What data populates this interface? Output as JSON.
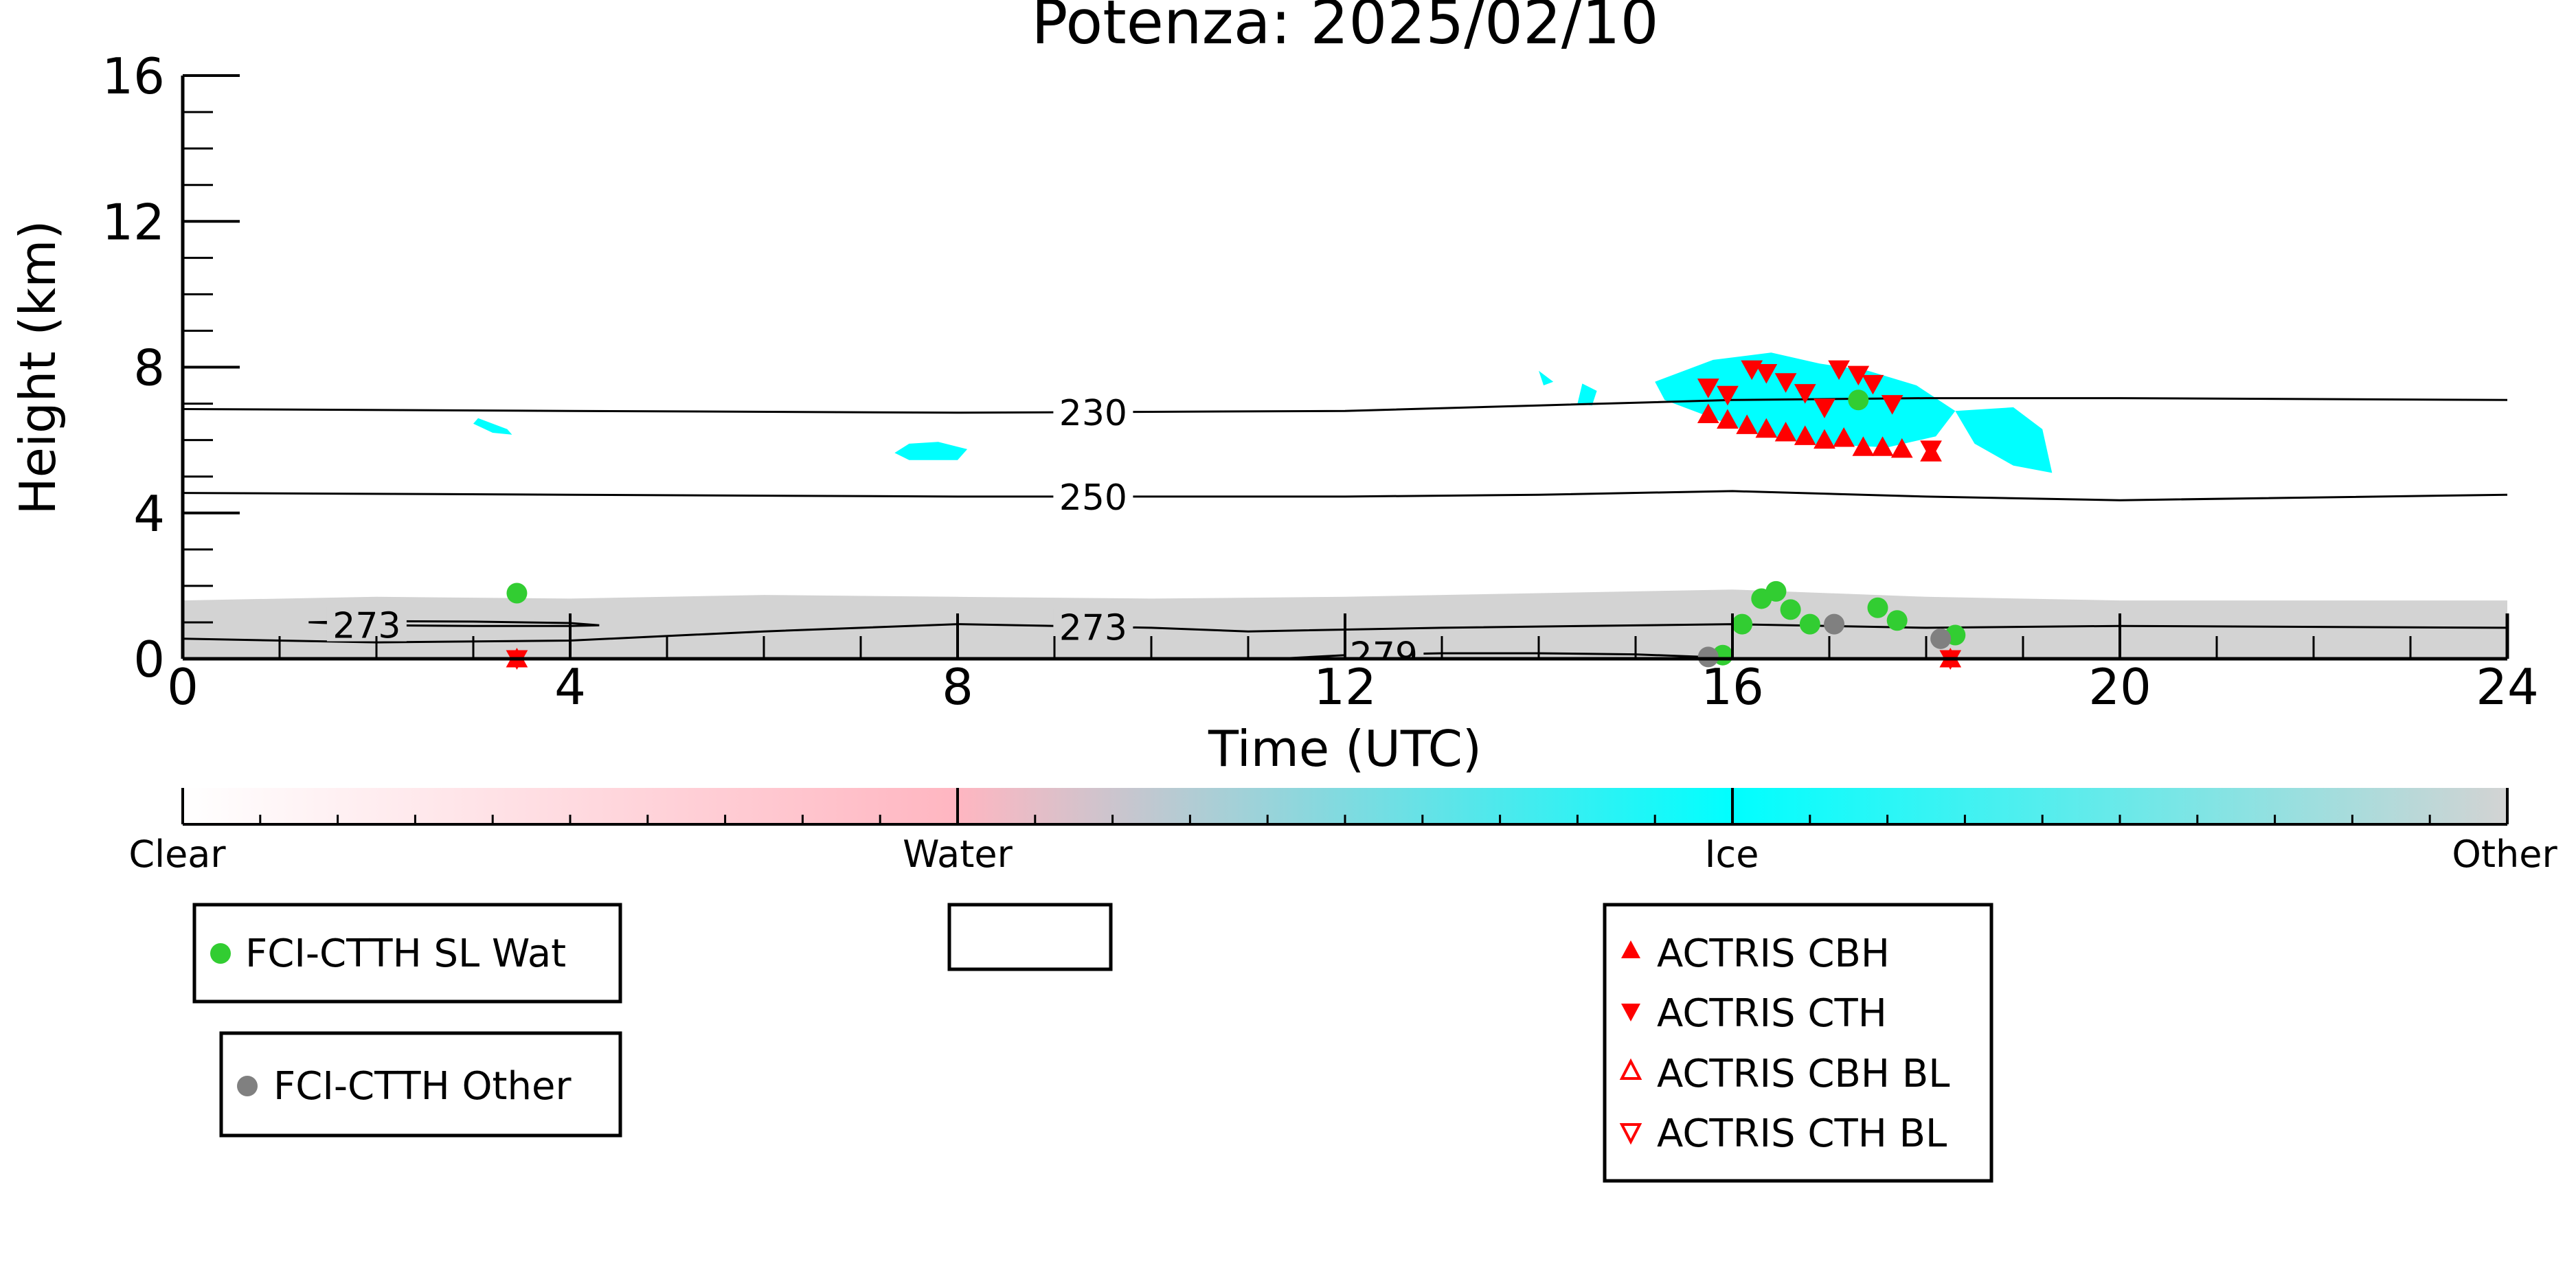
{
  "chart_data": {
    "type": "scatter",
    "title": "Potenza: 2025/02/10",
    "xlabel": "Time (UTC)",
    "ylabel": "Height (km)",
    "xlim": [
      0,
      24
    ],
    "ylim": [
      0,
      16
    ],
    "xticks": [
      0,
      4,
      8,
      12,
      16,
      20,
      24
    ],
    "yticks": [
      0,
      4,
      8,
      12,
      16
    ],
    "grid": false,
    "colorbar": {
      "labels": [
        "Clear",
        "Water",
        "Ice",
        "Other"
      ],
      "colors": {
        "clear": "#ffffff",
        "water": "#ffb6c1",
        "ice": "#00ffff",
        "other": "#d3d3d3"
      }
    },
    "contours": [
      {
        "label": "230",
        "label_x": 9.4,
        "points": [
          [
            0,
            6.85
          ],
          [
            4,
            6.8
          ],
          [
            8,
            6.75
          ],
          [
            12,
            6.8
          ],
          [
            14,
            6.95
          ],
          [
            16,
            7.1
          ],
          [
            18,
            7.15
          ],
          [
            20,
            7.15
          ],
          [
            24,
            7.1
          ]
        ]
      },
      {
        "label": "250",
        "label_x": 9.4,
        "points": [
          [
            0,
            4.55
          ],
          [
            4,
            4.5
          ],
          [
            8,
            4.45
          ],
          [
            12,
            4.45
          ],
          [
            14,
            4.5
          ],
          [
            16,
            4.6
          ],
          [
            18,
            4.45
          ],
          [
            20,
            4.35
          ],
          [
            24,
            4.5
          ]
        ]
      },
      {
        "label": "273",
        "label_x": 9.4,
        "points": [
          [
            0,
            0.55
          ],
          [
            2,
            0.45
          ],
          [
            4,
            0.5
          ],
          [
            6,
            0.75
          ],
          [
            8,
            0.95
          ],
          [
            10,
            0.85
          ],
          [
            11,
            0.75
          ],
          [
            13,
            0.85
          ],
          [
            16,
            0.95
          ],
          [
            18,
            0.85
          ],
          [
            20,
            0.9
          ],
          [
            24,
            0.85
          ]
        ]
      },
      {
        "label": "273",
        "label_x": 1.9,
        "points": [
          [
            1.3,
            1.0
          ],
          [
            2,
            0.92
          ],
          [
            3,
            0.9
          ],
          [
            4,
            0.9
          ],
          [
            4.3,
            0.92
          ],
          [
            4,
            0.98
          ],
          [
            3,
            1.02
          ],
          [
            2,
            1.03
          ],
          [
            1.3,
            1.0
          ]
        ]
      },
      {
        "label": "279",
        "label_x": 12.4,
        "points": [
          [
            11.3,
            0.0
          ],
          [
            12,
            0.1
          ],
          [
            13,
            0.15
          ],
          [
            14,
            0.15
          ],
          [
            15,
            0.12
          ],
          [
            16,
            0.02
          ]
        ]
      }
    ],
    "regions": [
      {
        "name": "Other",
        "color": "#d3d3d3",
        "points": [
          [
            0,
            0
          ],
          [
            0,
            1.6
          ],
          [
            2,
            1.7
          ],
          [
            4,
            1.65
          ],
          [
            6,
            1.75
          ],
          [
            8,
            1.7
          ],
          [
            10,
            1.65
          ],
          [
            12,
            1.7
          ],
          [
            14,
            1.8
          ],
          [
            16,
            1.9
          ],
          [
            18,
            1.7
          ],
          [
            20,
            1.6
          ],
          [
            22,
            1.6
          ],
          [
            24,
            1.6
          ],
          [
            24,
            0
          ]
        ]
      },
      {
        "name": "Ice",
        "color": "#00ffff",
        "points": [
          [
            7.5,
            5.9
          ],
          [
            7.8,
            5.95
          ],
          [
            8.1,
            5.75
          ],
          [
            8.0,
            5.45
          ],
          [
            7.5,
            5.45
          ],
          [
            7.35,
            5.65
          ]
        ]
      },
      {
        "name": "Ice",
        "color": "#00ffff",
        "points": [
          [
            3.05,
            6.6
          ],
          [
            3.35,
            6.3
          ],
          [
            3.4,
            6.15
          ],
          [
            3.2,
            6.2
          ],
          [
            3.0,
            6.45
          ]
        ]
      },
      {
        "name": "Ice",
        "color": "#00ffff",
        "points": [
          [
            15.2,
            7.6
          ],
          [
            15.8,
            8.2
          ],
          [
            16.4,
            8.4
          ],
          [
            16.9,
            8.1
          ],
          [
            17.4,
            7.9
          ],
          [
            17.9,
            7.5
          ],
          [
            18.3,
            6.8
          ],
          [
            18.1,
            6.1
          ],
          [
            17.6,
            5.8
          ],
          [
            16.8,
            5.9
          ],
          [
            16.2,
            6.2
          ],
          [
            15.7,
            6.7
          ],
          [
            15.3,
            7.1
          ]
        ]
      },
      {
        "name": "Ice",
        "color": "#00ffff",
        "points": [
          [
            18.3,
            6.8
          ],
          [
            18.9,
            6.9
          ],
          [
            19.2,
            6.3
          ],
          [
            19.3,
            5.1
          ],
          [
            18.9,
            5.3
          ],
          [
            18.5,
            5.9
          ]
        ]
      },
      {
        "name": "Ice",
        "color": "#00ffff",
        "points": [
          [
            14.0,
            7.9
          ],
          [
            14.05,
            7.5
          ],
          [
            14.15,
            7.6
          ]
        ]
      },
      {
        "name": "Ice",
        "color": "#00ffff",
        "points": [
          [
            14.45,
            7.55
          ],
          [
            14.6,
            7.35
          ],
          [
            14.55,
            6.95
          ],
          [
            14.4,
            7.0
          ]
        ]
      }
    ],
    "series": [
      {
        "name": "FCI-CTTH SL Wat",
        "marker": "circle",
        "color": "#32cd32",
        "points": [
          [
            3.45,
            1.8
          ],
          [
            16.1,
            0.95
          ],
          [
            16.3,
            1.65
          ],
          [
            16.45,
            1.85
          ],
          [
            16.6,
            1.35
          ],
          [
            16.8,
            0.95
          ],
          [
            17.3,
            7.1
          ],
          [
            17.5,
            1.4
          ],
          [
            17.7,
            1.05
          ],
          [
            18.3,
            0.65
          ],
          [
            15.9,
            0.1
          ]
        ]
      },
      {
        "name": "FCI-CTTH Other",
        "marker": "circle",
        "color": "#808080",
        "points": [
          [
            15.75,
            0.05
          ],
          [
            17.05,
            0.95
          ],
          [
            18.15,
            0.55
          ]
        ]
      },
      {
        "name": "ACTRIS CBH",
        "marker": "triangle-up",
        "color": "#ff0000",
        "points": [
          [
            15.75,
            6.7
          ],
          [
            15.95,
            6.55
          ],
          [
            16.15,
            6.4
          ],
          [
            16.35,
            6.3
          ],
          [
            16.55,
            6.2
          ],
          [
            16.75,
            6.1
          ],
          [
            16.95,
            6.0
          ],
          [
            17.15,
            6.05
          ],
          [
            17.35,
            5.8
          ],
          [
            17.55,
            5.8
          ],
          [
            17.75,
            5.75
          ],
          [
            18.05,
            5.65
          ],
          [
            18.25,
            0.0
          ],
          [
            3.45,
            0.0
          ]
        ]
      },
      {
        "name": "ACTRIS CTH",
        "marker": "triangle-down",
        "color": "#ff0000",
        "points": [
          [
            15.75,
            7.45
          ],
          [
            15.95,
            7.25
          ],
          [
            16.2,
            7.95
          ],
          [
            16.35,
            7.85
          ],
          [
            16.55,
            7.6
          ],
          [
            16.75,
            7.3
          ],
          [
            16.95,
            6.9
          ],
          [
            17.1,
            7.95
          ],
          [
            17.3,
            7.8
          ],
          [
            17.45,
            7.55
          ],
          [
            17.65,
            7.0
          ],
          [
            18.05,
            5.75
          ],
          [
            18.25,
            0.0
          ],
          [
            3.45,
            0.0
          ]
        ]
      },
      {
        "name": "ACTRIS CBH BL",
        "marker": "triangle-up-open",
        "color": "#ff0000",
        "points": []
      },
      {
        "name": "ACTRIS CTH BL",
        "marker": "triangle-down-open",
        "color": "#ff0000",
        "points": []
      }
    ],
    "legends": [
      {
        "entries": [
          "FCI-CTTH SL Wat"
        ],
        "placement": "bottom-left"
      },
      {
        "entries": [
          "FCI-CTTH Other"
        ],
        "placement": "bottom-left"
      },
      {
        "entries": [],
        "placement": "bottom-center"
      },
      {
        "entries": [
          "ACTRIS CBH",
          "ACTRIS CTH",
          "ACTRIS CBH BL",
          "ACTRIS CTH BL"
        ],
        "placement": "bottom-right"
      }
    ]
  }
}
